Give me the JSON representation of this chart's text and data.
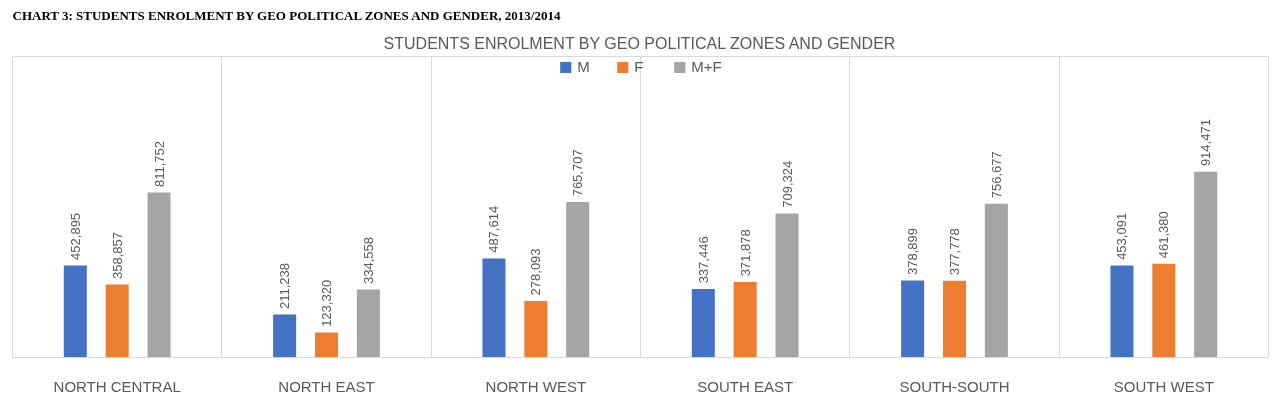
{
  "chart_data": {
    "type": "bar",
    "title": "STUDENTS ENROLMENT BY GEO POLITICAL ZONES AND GENDER",
    "annotations": [
      "CHART 3: STUDENTS ENROLMENT BY GEO POLITICAL ZONES AND GENDER, 2013/2014"
    ],
    "categories": [
      "NORTH CENTRAL",
      "NORTH EAST",
      "NORTH WEST",
      "SOUTH EAST",
      "SOUTH-SOUTH",
      "SOUTH WEST"
    ],
    "series": [
      {
        "name": "M",
        "color": "#4472c4",
        "values": [
          452895,
          211238,
          487614,
          337446,
          378899,
          453091
        ],
        "value_labels": [
          "452,895",
          "211,238",
          "487,614",
          "337,446",
          "378,899",
          "453,091"
        ]
      },
      {
        "name": "F",
        "color": "#ed7d31",
        "values": [
          358857,
          123320,
          278093,
          371878,
          377778,
          461380
        ],
        "value_labels": [
          "358,857",
          "123,320",
          "278,093",
          "371,878",
          "377,778",
          "461,380"
        ]
      },
      {
        "name": "M+F",
        "color": "#a5a5a5",
        "values": [
          811752,
          334558,
          765707,
          709324,
          756677,
          914471
        ],
        "value_labels": [
          "811,752",
          "334,558",
          "765,707",
          "709,324",
          "756,677",
          "914,471"
        ]
      }
    ],
    "legend": "top",
    "grid": "x"
  }
}
